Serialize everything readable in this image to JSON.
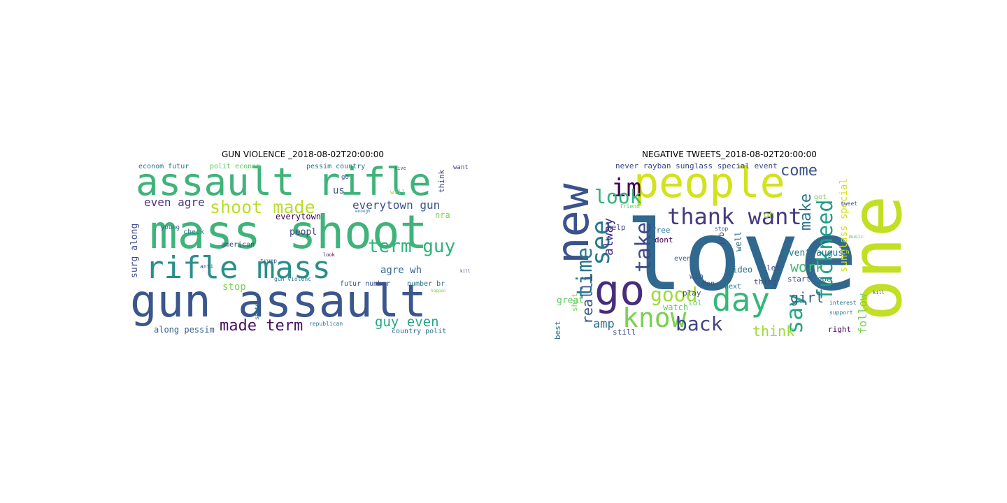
{
  "left": {
    "title": "GUN VIOLENCE _2018-08-02T20:00:00",
    "words": [
      {
        "text": "assault rifle",
        "color": "#3fb37a"
      },
      {
        "text": "mass shoot",
        "color": "#3fb37a"
      },
      {
        "text": "rifle mass",
        "color": "#2a8f8a"
      },
      {
        "text": "gun assault",
        "color": "#3a568c"
      },
      {
        "text": "shoot made",
        "color": "#b8de29"
      },
      {
        "text": "term guy",
        "color": "#2fb47c"
      },
      {
        "text": "made term",
        "color": "#471063"
      },
      {
        "text": "guy even",
        "color": "#22a884"
      },
      {
        "text": "even agre",
        "color": "#46327e"
      },
      {
        "text": "everytown gun",
        "color": "#3b528b"
      },
      {
        "text": "agre wh",
        "color": "#31688e"
      },
      {
        "text": "stop",
        "color": "#7ad151"
      },
      {
        "text": "peopl",
        "color": "#414487"
      },
      {
        "text": "along pessim",
        "color": "#355f8d"
      },
      {
        "text": "econom futur",
        "color": "#2c728e"
      },
      {
        "text": "polit econom",
        "color": "#5ec962"
      },
      {
        "text": "pessim country",
        "color": "#2c728e"
      },
      {
        "text": "surg along",
        "color": "#3e4a89"
      },
      {
        "text": "us",
        "color": "#3b528b"
      },
      {
        "text": "everytown",
        "color": "#440154"
      },
      {
        "text": "nra",
        "color": "#7ad151"
      },
      {
        "text": "futur number",
        "color": "#3b528b"
      },
      {
        "text": "country polit",
        "color": "#31688e"
      },
      {
        "text": "number br",
        "color": "#2c728e"
      },
      {
        "text": "think",
        "color": "#3e4a89"
      },
      {
        "text": "want",
        "color": "#414487"
      },
      {
        "text": "young",
        "color": "#355f8d"
      },
      {
        "text": "check",
        "color": "#2a788e"
      },
      {
        "text": "american",
        "color": "#3e4a89"
      },
      {
        "text": "gun violenc",
        "color": "#2c728e"
      },
      {
        "text": "trump",
        "color": "#355f8d"
      },
      {
        "text": "anti",
        "color": "#3b528b"
      },
      {
        "text": "republican",
        "color": "#2a788e"
      },
      {
        "text": "go",
        "color": "#3e4a89"
      },
      {
        "text": "will",
        "color": "#a0da39"
      },
      {
        "text": "state",
        "color": "#2c728e"
      },
      {
        "text": "look",
        "color": "#440154"
      },
      {
        "text": "live",
        "color": "#3b528b"
      },
      {
        "text": "happen",
        "color": "#7ad151"
      },
      {
        "text": "enough",
        "color": "#2a788e"
      },
      {
        "text": "kill",
        "color": "#3e4a89"
      }
    ]
  },
  "right": {
    "title": "NEGATIVE TWEETS_2018-08-02T20:00:00",
    "words": [
      {
        "text": "love",
        "color": "#31688e"
      },
      {
        "text": "one",
        "color": "#c2df23"
      },
      {
        "text": "new",
        "color": "#3b528b"
      },
      {
        "text": "people",
        "color": "#d2e21b"
      },
      {
        "text": "day",
        "color": "#35b779"
      },
      {
        "text": "go",
        "color": "#472d7b"
      },
      {
        "text": "know",
        "color": "#7ad151"
      },
      {
        "text": "thank want",
        "color": "#443983"
      },
      {
        "text": "im",
        "color": "#440154"
      },
      {
        "text": "see",
        "color": "#2a788e"
      },
      {
        "text": "look",
        "color": "#2fb47c"
      },
      {
        "text": "take",
        "color": "#3e4a89"
      },
      {
        "text": "time",
        "color": "#2a788e"
      },
      {
        "text": "good",
        "color": "#a0da39"
      },
      {
        "text": "back",
        "color": "#414487"
      },
      {
        "text": "say",
        "color": "#22a884"
      },
      {
        "text": "fuckneed",
        "color": "#1f9e89"
      },
      {
        "text": "come",
        "color": "#3b528b"
      },
      {
        "text": "make",
        "color": "#2c728e"
      },
      {
        "text": "work",
        "color": "#3fbc73"
      },
      {
        "text": "girl",
        "color": "#355f8d"
      },
      {
        "text": "follow",
        "color": "#7ad151"
      },
      {
        "text": "think",
        "color": "#a0da39"
      },
      {
        "text": "sunglass special",
        "color": "#d2e21b"
      },
      {
        "text": "event august",
        "color": "#2a788e"
      },
      {
        "text": "never rayban sunglass special event",
        "color": "#3e4a89"
      },
      {
        "text": "realli",
        "color": "#3b528b"
      },
      {
        "text": "amp",
        "color": "#2c728e"
      },
      {
        "text": "alway",
        "color": "#472d7b"
      },
      {
        "text": "watch",
        "color": "#5ec962"
      },
      {
        "text": "play",
        "color": "#3b528b"
      },
      {
        "text": "great",
        "color": "#5ec962"
      },
      {
        "text": "video",
        "color": "#2c728e"
      },
      {
        "text": "dont",
        "color": "#440154"
      },
      {
        "text": "free",
        "color": "#2a788e"
      },
      {
        "text": "help",
        "color": "#3e4a89"
      },
      {
        "text": "oh",
        "color": "#a0da39"
      },
      {
        "text": "got",
        "color": "#7ad151"
      },
      {
        "text": "start",
        "color": "#3b528b"
      },
      {
        "text": "hope",
        "color": "#2a788e"
      },
      {
        "text": "let",
        "color": "#414487"
      },
      {
        "text": "lol",
        "color": "#5ec962"
      },
      {
        "text": "thing",
        "color": "#3e4a89"
      },
      {
        "text": "right",
        "color": "#440154"
      },
      {
        "text": "well",
        "color": "#2c728e"
      },
      {
        "text": "even",
        "color": "#355f8d"
      },
      {
        "text": "win",
        "color": "#3b528b"
      },
      {
        "text": "best",
        "color": "#2a788e"
      },
      {
        "text": "shit",
        "color": "#7ad151"
      },
      {
        "text": "still",
        "color": "#3e4a89"
      },
      {
        "text": "next",
        "color": "#2c728e"
      },
      {
        "text": "friend",
        "color": "#5ec962"
      },
      {
        "text": "job",
        "color": "#414487"
      },
      {
        "text": "don",
        "color": "#3e4a89"
      },
      {
        "text": "support",
        "color": "#2a788e"
      },
      {
        "text": "stop",
        "color": "#355f8d"
      },
      {
        "text": "interest",
        "color": "#2c728e"
      },
      {
        "text": "tweet",
        "color": "#3b528b"
      },
      {
        "text": "kill",
        "color": "#414487"
      },
      {
        "text": "music",
        "color": "#5ec962"
      }
    ]
  }
}
